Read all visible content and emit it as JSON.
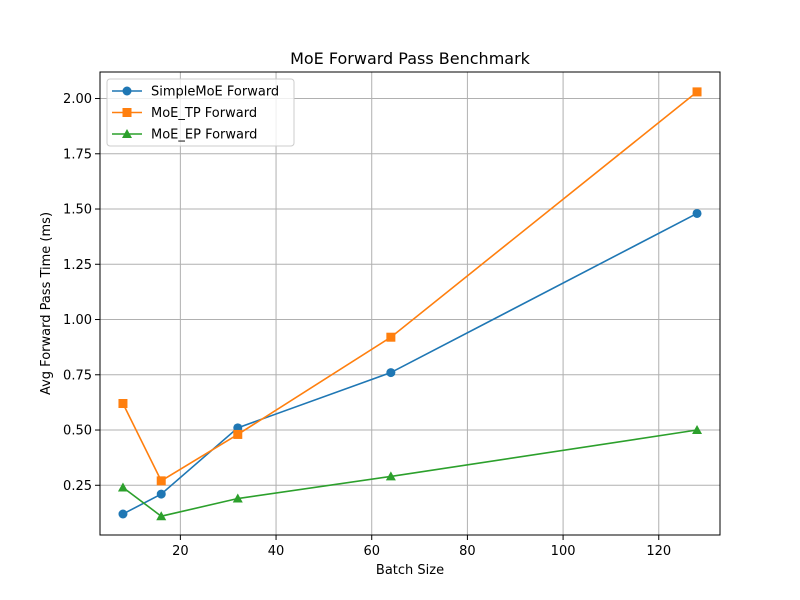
{
  "chart_data": {
    "type": "line",
    "title": "MoE Forward Pass Benchmark",
    "xlabel": "Batch Size",
    "ylabel": "Avg Forward Pass Time (ms)",
    "xlim": [
      3.2,
      132.8
    ],
    "ylim": [
      0.025,
      2.12
    ],
    "x": [
      8,
      16,
      32,
      64,
      128
    ],
    "xticks": [
      20,
      40,
      60,
      80,
      100,
      120
    ],
    "yticks": [
      0.25,
      0.5,
      0.75,
      1.0,
      1.25,
      1.5,
      1.75,
      2.0
    ],
    "xtick_labels": [
      "20",
      "40",
      "60",
      "80",
      "100",
      "120"
    ],
    "ytick_labels": [
      "0.25",
      "0.50",
      "0.75",
      "1.00",
      "1.25",
      "1.50",
      "1.75",
      "2.00"
    ],
    "grid": true,
    "legend_position": "upper-left",
    "series": [
      {
        "name": "SimpleMoE Forward",
        "color": "#1f77b4",
        "marker": "circle",
        "values": [
          0.12,
          0.21,
          0.51,
          0.76,
          1.48
        ]
      },
      {
        "name": "MoE_TP Forward",
        "color": "#ff7f0e",
        "marker": "square",
        "values": [
          0.62,
          0.27,
          0.48,
          0.92,
          2.03
        ]
      },
      {
        "name": "MoE_EP Forward",
        "color": "#2ca02c",
        "marker": "triangle",
        "values": [
          0.24,
          0.11,
          0.19,
          0.29,
          0.5
        ]
      }
    ]
  }
}
